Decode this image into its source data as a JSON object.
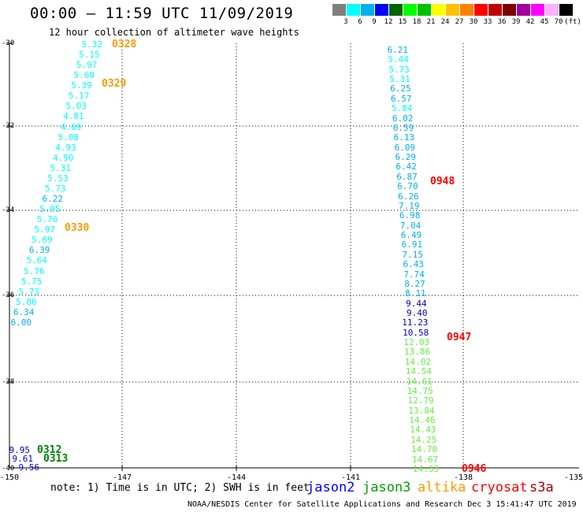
{
  "header": {
    "title": "00:00 — 11:59 UTC 11/09/2019",
    "subtitle": "12 hour collection of altimeter wave heights"
  },
  "colorbar": {
    "colors": [
      "#7f7f7f",
      "#00ffff",
      "#00b0f0",
      "#0000ff",
      "#006400",
      "#00ff00",
      "#00c000",
      "#ffff00",
      "#ffc000",
      "#ff8000",
      "#ff0000",
      "#c00000",
      "#800000",
      "#a000a0",
      "#ff00ff",
      "#ffb0ff",
      "#000000"
    ],
    "labels": [
      "3",
      "6",
      "9",
      "12",
      "15",
      "18",
      "21",
      "24",
      "27",
      "30",
      "33",
      "36",
      "39",
      "42",
      "45",
      "70",
      "(ft)"
    ]
  },
  "map": {
    "lat_labels": [
      "-30",
      "-32",
      "-34",
      "-36",
      "-38",
      "-40"
    ],
    "lon_labels": [
      "-150",
      "-147",
      "-144",
      "-141",
      "-138",
      "-135"
    ],
    "grid_color": "#000000"
  },
  "tracks": {
    "left_track": [
      {
        "v": "5.32",
        "c": "#00ffff"
      },
      {
        "v": "5.15",
        "c": "#00ffff"
      },
      {
        "v": "5.97",
        "c": "#00ffff"
      },
      {
        "v": "5.60",
        "c": "#00ffff"
      },
      {
        "v": "5.39",
        "c": "#00ffff"
      },
      {
        "v": "5.17",
        "c": "#00ffff"
      },
      {
        "v": "5.03",
        "c": "#00ffff"
      },
      {
        "v": "4.81",
        "c": "#00ffff"
      },
      {
        "v": "4.69",
        "c": "#00ffff"
      },
      {
        "v": "5.08",
        "c": "#00ffff"
      },
      {
        "v": "4.93",
        "c": "#00ffff"
      },
      {
        "v": "4.90",
        "c": "#00ffff"
      },
      {
        "v": "5.31",
        "c": "#00ffff"
      },
      {
        "v": "5.53",
        "c": "#00ffff"
      },
      {
        "v": "5.73",
        "c": "#00ffff"
      },
      {
        "v": "6.22",
        "c": "#00b0f0"
      },
      {
        "v": "5.95",
        "c": "#00ffff"
      },
      {
        "v": "5.76",
        "c": "#00ffff"
      },
      {
        "v": "5.97",
        "c": "#00ffff"
      },
      {
        "v": "5.69",
        "c": "#00ffff"
      },
      {
        "v": "6.39",
        "c": "#00b0f0"
      },
      {
        "v": "5.64",
        "c": "#00ffff"
      },
      {
        "v": "5.76",
        "c": "#00ffff"
      },
      {
        "v": "5.75",
        "c": "#00ffff"
      },
      {
        "v": "5.73",
        "c": "#00ffff"
      },
      {
        "v": "5.86",
        "c": "#00ffff"
      },
      {
        "v": "6.34",
        "c": "#00b0f0"
      },
      {
        "v": "6.00",
        "c": "#00b0f0"
      }
    ],
    "left_times": [
      {
        "t": "0328",
        "c": "#ff9900"
      },
      {
        "t": "0329",
        "c": "#ff9900"
      },
      {
        "t": "0330",
        "c": "#ff9900"
      }
    ],
    "right_track": [
      {
        "v": "6.21",
        "c": "#00b0f0"
      },
      {
        "v": "5.44",
        "c": "#00ffff"
      },
      {
        "v": "5.73",
        "c": "#00ffff"
      },
      {
        "v": "5.31",
        "c": "#00ffff"
      },
      {
        "v": "6.25",
        "c": "#00b0f0"
      },
      {
        "v": "6.57",
        "c": "#00b0f0"
      },
      {
        "v": "5.84",
        "c": "#00ffff"
      },
      {
        "v": "6.02",
        "c": "#00b0f0"
      },
      {
        "v": "6.59",
        "c": "#00b0f0"
      },
      {
        "v": "6.13",
        "c": "#00b0f0"
      },
      {
        "v": "6.09",
        "c": "#00b0f0"
      },
      {
        "v": "6.29",
        "c": "#00b0f0"
      },
      {
        "v": "6.42",
        "c": "#00b0f0"
      },
      {
        "v": "6.87",
        "c": "#00b0f0"
      },
      {
        "v": "6.70",
        "c": "#00b0f0"
      },
      {
        "v": "6.26",
        "c": "#00b0f0"
      },
      {
        "v": "7.19",
        "c": "#00b0f0"
      },
      {
        "v": "6.98",
        "c": "#00b0f0"
      },
      {
        "v": "7.04",
        "c": "#00b0f0"
      },
      {
        "v": "6.49",
        "c": "#00b0f0"
      },
      {
        "v": "6.91",
        "c": "#00b0f0"
      },
      {
        "v": "7.15",
        "c": "#00b0f0"
      },
      {
        "v": "6.43",
        "c": "#00b0f0"
      },
      {
        "v": "7.74",
        "c": "#00b0f0"
      },
      {
        "v": "8.27",
        "c": "#00b0f0"
      },
      {
        "v": "8.11",
        "c": "#00b0f0"
      },
      {
        "v": "9.44",
        "c": "#0000cc"
      },
      {
        "v": "9.40",
        "c": "#0000cc"
      },
      {
        "v": "11.23",
        "c": "#0000cc"
      },
      {
        "v": "10.58",
        "c": "#0000cc"
      },
      {
        "v": "12.03",
        "c": "#66ee44"
      },
      {
        "v": "13.86",
        "c": "#66ee44"
      },
      {
        "v": "14.02",
        "c": "#66ee44"
      },
      {
        "v": "14.54",
        "c": "#66ee44"
      },
      {
        "v": "14.61",
        "c": "#66ee44"
      },
      {
        "v": "14.75",
        "c": "#66ee44"
      },
      {
        "v": "12.79",
        "c": "#66ee44"
      },
      {
        "v": "13.84",
        "c": "#66ee44"
      },
      {
        "v": "14.46",
        "c": "#66ee44"
      },
      {
        "v": "14.43",
        "c": "#66ee44"
      },
      {
        "v": "14.25",
        "c": "#66ee44"
      },
      {
        "v": "14.70",
        "c": "#66ee44"
      },
      {
        "v": "14.67",
        "c": "#66ee44"
      },
      {
        "v": "14.33",
        "c": "#66ee44"
      }
    ],
    "right_times": [
      {
        "t": "0948",
        "c": "#ff0000"
      },
      {
        "t": "0947",
        "c": "#ff0000"
      },
      {
        "t": "0946",
        "c": "#ff0000"
      }
    ],
    "bottom_left": [
      {
        "v": "9.95",
        "c": "#0000cc"
      },
      {
        "v": "9.61",
        "c": "#0000cc"
      },
      {
        "v": "9.56",
        "c": "#0000cc"
      }
    ],
    "bottom_left_times": [
      {
        "t": "0312",
        "c": "#008000"
      },
      {
        "t": "0313",
        "c": "#008000"
      }
    ]
  },
  "legend": {
    "note": "note: 1) Time is in UTC; 2) SWH is in feet",
    "satellites": [
      {
        "name": "jason2",
        "c": "#0000ff"
      },
      {
        "name": "jason3",
        "c": "#00a000"
      },
      {
        "name": "altika",
        "c": "#ff9900"
      },
      {
        "name": "cryosat",
        "c": "#ff0000"
      },
      {
        "name": "s3a",
        "c": "#aa0000"
      }
    ]
  },
  "footer": "NOAA/NESDIS Center for Satellite Applications and Research   Dec  3 15:41:47 UTC 2019"
}
